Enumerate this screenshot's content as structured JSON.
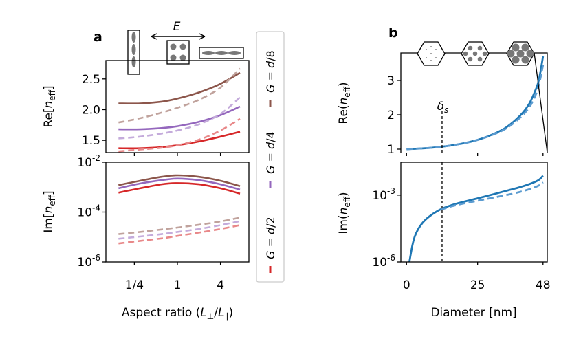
{
  "chart_data": [
    {
      "panel": "a",
      "type": "line",
      "panel_label": "a",
      "xlabel": "Aspect ratio (L⊥/L∥)",
      "xscale": "log",
      "x_ticks": [
        "1/4",
        "1",
        "4"
      ],
      "x_tick_values": [
        0.25,
        1,
        4
      ],
      "xlim": [
        0.1,
        10
      ],
      "top_annotation": "E",
      "subplots": [
        {
          "ylabel": "Re[n_eff]",
          "ylim": [
            1.3,
            2.8
          ],
          "y_ticks": [
            "1.5",
            "2.0",
            "2.5"
          ],
          "y_tick_values": [
            1.5,
            2.0,
            2.5
          ],
          "series": [
            {
              "name": "G = d/8",
              "color": "#8c564b",
              "style": "solid",
              "x": [
                0.15,
                0.3,
                0.6,
                1,
                2,
                4,
                7.5
              ],
              "y": [
                2.1,
                2.1,
                2.13,
                2.18,
                2.28,
                2.42,
                2.6
              ]
            },
            {
              "name": "G = d/8 (dashed)",
              "color": "#8c564b",
              "style": "dashed",
              "x": [
                0.15,
                0.3,
                0.6,
                1,
                2,
                4,
                7.5
              ],
              "y": [
                1.79,
                1.86,
                1.95,
                2.03,
                2.16,
                2.36,
                2.67
              ]
            },
            {
              "name": "G = d/4",
              "color": "#9467bd",
              "style": "solid",
              "x": [
                0.15,
                0.3,
                0.6,
                1,
                2,
                4,
                7.5
              ],
              "y": [
                1.68,
                1.68,
                1.7,
                1.73,
                1.8,
                1.91,
                2.05
              ]
            },
            {
              "name": "G = d/4 (dashed)",
              "color": "#9467bd",
              "style": "dashed",
              "x": [
                0.15,
                0.3,
                0.6,
                1,
                2,
                4,
                7.5
              ],
              "y": [
                1.53,
                1.56,
                1.61,
                1.66,
                1.76,
                1.93,
                2.2
              ]
            },
            {
              "name": "G = d/2",
              "color": "#d62728",
              "style": "solid",
              "x": [
                0.15,
                0.3,
                0.6,
                1,
                2,
                4,
                7.5
              ],
              "y": [
                1.37,
                1.37,
                1.39,
                1.42,
                1.48,
                1.56,
                1.64
              ]
            },
            {
              "name": "G = d/2 (dashed)",
              "color": "#d62728",
              "style": "dashed",
              "x": [
                0.15,
                0.3,
                0.6,
                1,
                2,
                4,
                7.5
              ],
              "y": [
                1.32,
                1.35,
                1.38,
                1.42,
                1.51,
                1.66,
                1.85
              ]
            }
          ]
        },
        {
          "ylabel": "Im[n_eff]",
          "yscale": "log",
          "ylim": [
            1e-06,
            0.01
          ],
          "y_ticks": [
            "10^-6",
            "10^-4",
            "10^-2"
          ],
          "y_tick_values": [
            1e-06,
            0.0001,
            0.01
          ],
          "series": [
            {
              "name": "G = d/8",
              "color": "#8c564b",
              "style": "solid",
              "x": [
                0.15,
                0.3,
                0.6,
                1,
                2,
                4,
                7.5
              ],
              "y": [
                0.0012,
                0.0018,
                0.0026,
                0.003,
                0.0026,
                0.0018,
                0.0011
              ]
            },
            {
              "name": "G = d/8 (dashed)",
              "color": "#8c564b",
              "style": "dashed",
              "x": [
                0.15,
                0.3,
                0.6,
                1,
                2,
                4,
                7.5
              ],
              "y": [
                1.3e-05,
                1.6e-05,
                2e-05,
                2.4e-05,
                3.1e-05,
                4.2e-05,
                6e-05
              ]
            },
            {
              "name": "G = d/4",
              "color": "#9467bd",
              "style": "solid",
              "x": [
                0.15,
                0.3,
                0.6,
                1,
                2,
                4,
                7.5
              ],
              "y": [
                0.0009,
                0.0014,
                0.0019,
                0.0022,
                0.0019,
                0.0013,
                0.0008
              ]
            },
            {
              "name": "G = d/4 (dashed)",
              "color": "#9467bd",
              "style": "dashed",
              "x": [
                0.15,
                0.3,
                0.6,
                1,
                2,
                4,
                7.5
              ],
              "y": [
                8.5e-06,
                1.05e-05,
                1.3e-05,
                1.6e-05,
                2.1e-05,
                3e-05,
                4.3e-05
              ]
            },
            {
              "name": "G = d/2",
              "color": "#d62728",
              "style": "solid",
              "x": [
                0.15,
                0.3,
                0.6,
                1,
                2,
                4,
                7.5
              ],
              "y": [
                0.0006,
                0.0009,
                0.0013,
                0.00145,
                0.0013,
                0.0009,
                0.00055
              ]
            },
            {
              "name": "G = d/2 (dashed)",
              "color": "#d62728",
              "style": "dashed",
              "x": [
                0.15,
                0.3,
                0.6,
                1,
                2,
                4,
                7.5
              ],
              "y": [
                5.5e-06,
                7e-06,
                8.8e-06,
                1.1e-05,
                1.5e-05,
                2.1e-05,
                3e-05
              ]
            }
          ]
        }
      ],
      "legend": {
        "placement": "right",
        "entries": [
          "G = d/2",
          "G = d/4",
          "G = d/8"
        ]
      }
    },
    {
      "panel": "b",
      "type": "line",
      "panel_label": "b",
      "xlabel": "Diameter [nm]",
      "xlim": [
        -2,
        49.5
      ],
      "x_ticks": [
        "0",
        "25",
        "48"
      ],
      "x_tick_values": [
        0,
        25,
        48
      ],
      "vline": {
        "x": 12.5,
        "label": "δs"
      },
      "subplots": [
        {
          "ylabel": "Re(n_eff)",
          "ylim": [
            0.9,
            3.8
          ],
          "y_ticks": [
            "1",
            "2",
            "3"
          ],
          "y_tick_values": [
            1,
            2,
            3
          ],
          "series": [
            {
              "name": "solid",
              "color": "#1f77b4",
              "style": "solid",
              "x": [
                0,
                5,
                10,
                15,
                20,
                25,
                30,
                35,
                40,
                43,
                45,
                46.5,
                48
              ],
              "y": [
                1.0,
                1.02,
                1.05,
                1.1,
                1.17,
                1.27,
                1.42,
                1.63,
                1.98,
                2.3,
                2.65,
                3.0,
                3.7
              ]
            },
            {
              "name": "dashed",
              "color": "#5b9bd0",
              "style": "dashed",
              "x": [
                0,
                5,
                10,
                15,
                20,
                25,
                30,
                35,
                40,
                43,
                45,
                46.5,
                48
              ],
              "y": [
                1.0,
                1.02,
                1.05,
                1.1,
                1.17,
                1.27,
                1.41,
                1.6,
                1.92,
                2.2,
                2.5,
                2.85,
                3.45
              ]
            }
          ]
        },
        {
          "ylabel": "Im(n_eff)",
          "yscale": "log",
          "ylim": [
            1e-06,
            0.03
          ],
          "y_ticks": [
            "10^-6",
            "10^-3"
          ],
          "y_tick_values": [
            1e-06,
            0.001
          ],
          "series": [
            {
              "name": "solid",
              "color": "#1f77b4",
              "style": "solid",
              "x": [
                1,
                2,
                3,
                5,
                8,
                12,
                16,
                20,
                25,
                30,
                35,
                40,
                44,
                46.5,
                48
              ],
              "y": [
                1e-06,
                5e-06,
                1.5e-05,
                4.5e-05,
                0.00011,
                0.00023,
                0.00036,
                0.0005,
                0.00072,
                0.00105,
                0.00155,
                0.0023,
                0.0034,
                0.0048,
                0.0075
              ]
            },
            {
              "name": "dashed",
              "color": "#5b9bd0",
              "style": "dashed",
              "x": [
                12,
                16,
                20,
                25,
                30,
                35,
                40,
                44,
                46.5,
                48
              ],
              "y": [
                0.00022,
                0.00032,
                0.00042,
                0.00056,
                0.00075,
                0.001,
                0.0014,
                0.002,
                0.0027,
                0.0038
              ]
            }
          ]
        }
      ]
    }
  ]
}
